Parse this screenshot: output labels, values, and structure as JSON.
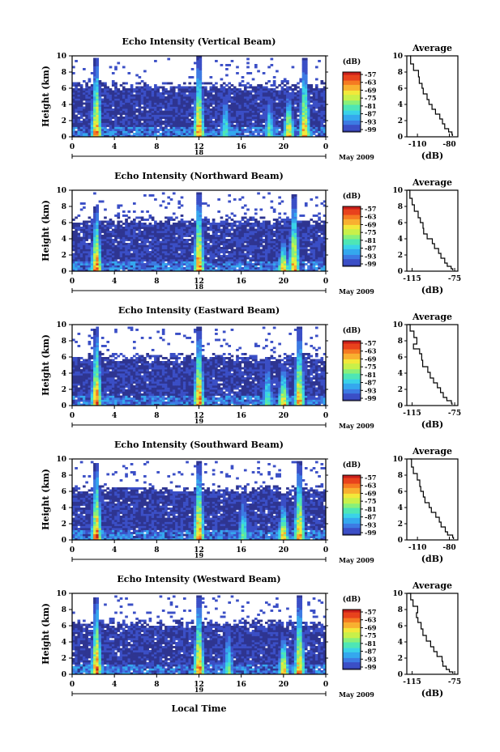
{
  "colors": {
    "background_echo": "#2e3591",
    "colormap": [
      "#2e3591",
      "#3b4fc6",
      "#3d7be3",
      "#35a8ee",
      "#3ad2e8",
      "#4ee6b5",
      "#88f07a",
      "#c8f04a",
      "#f2e83a",
      "#f8b030",
      "#f57a22",
      "#e8421c",
      "#c81e1a"
    ]
  },
  "x_axis_label": "Local Time",
  "colorbar": {
    "unit": "(dB)",
    "tick_labels": [
      "-57",
      "-63",
      "-69",
      "-75",
      "-81",
      "-87",
      "-93",
      "-99"
    ]
  },
  "chart_data": [
    {
      "type": "heatmap",
      "title": "Echo Intensity (Vertical Beam)",
      "ylabel": "Height (km)",
      "y_ticks": [
        "0",
        "2",
        "4",
        "6",
        "8",
        "10"
      ],
      "x_ticks": [
        "0",
        "4",
        "8",
        "12",
        "16",
        "20",
        "0"
      ],
      "date_label": "18",
      "month_label": "May 2009",
      "ylim": [
        0,
        10
      ],
      "xlim": [
        0,
        24
      ],
      "color_range_db": [
        -99,
        -57
      ],
      "clutter_top_km": 6.3,
      "convective_events": [
        {
          "center_hour": 2.3,
          "top_km": 9.8,
          "peak_db": -57
        },
        {
          "center_hour": 12.0,
          "top_km": 9.9,
          "peak_db": -57
        },
        {
          "center_hour": 14.5,
          "top_km": 5.5,
          "peak_db": -75
        },
        {
          "center_hour": 18.7,
          "top_km": 5.0,
          "peak_db": -75
        },
        {
          "center_hour": 20.5,
          "top_km": 5.5,
          "peak_db": -60
        },
        {
          "center_hour": 22.0,
          "top_km": 9.8,
          "peak_db": -60
        }
      ]
    },
    {
      "type": "line",
      "title": "Average",
      "xlabel": "(dB)",
      "x_ticks": [
        "-110",
        "-80"
      ],
      "xlim": [
        -120,
        -72
      ],
      "ylim": [
        0,
        10
      ],
      "y_ticks": [
        "0",
        "2",
        "4",
        "6",
        "8",
        "10"
      ],
      "x": [
        -117,
        -116,
        -113,
        -110,
        -108,
        -106,
        -104,
        -102,
        -99,
        -96,
        -93,
        -90,
        -87,
        -84,
        -81,
        -78,
        -76
      ],
      "y": [
        10.0,
        9.0,
        8.2,
        7.4,
        6.6,
        6.0,
        5.3,
        4.6,
        4.0,
        3.4,
        2.8,
        2.2,
        1.6,
        1.0,
        0.6,
        0.3,
        0.1
      ]
    },
    {
      "type": "heatmap",
      "title": "Echo Intensity (Northward Beam)",
      "ylabel": "Height (km)",
      "y_ticks": [
        "0",
        "2",
        "4",
        "6",
        "8",
        "10"
      ],
      "x_ticks": [
        "0",
        "4",
        "8",
        "12",
        "16",
        "20",
        "0"
      ],
      "date_label": "18",
      "month_label": "May 2009",
      "ylim": [
        0,
        10
      ],
      "xlim": [
        0,
        24
      ],
      "color_range_db": [
        -99,
        -57
      ],
      "clutter_top_km": 6.3,
      "convective_events": [
        {
          "center_hour": 2.3,
          "top_km": 8.0,
          "peak_db": -57
        },
        {
          "center_hour": 12.0,
          "top_km": 9.8,
          "peak_db": -57
        },
        {
          "center_hour": 20.0,
          "top_km": 4.0,
          "peak_db": -60
        },
        {
          "center_hour": 21.0,
          "top_km": 9.5,
          "peak_db": -60
        }
      ]
    },
    {
      "type": "line",
      "title": "Average",
      "xlabel": "(dB)",
      "x_ticks": [
        "-115",
        "-75"
      ],
      "xlim": [
        -120,
        -72
      ],
      "ylim": [
        0,
        10
      ],
      "y_ticks": [
        "0",
        "2",
        "4",
        "6",
        "8",
        "10"
      ],
      "x": [
        -119,
        -117,
        -115,
        -112,
        -110,
        -108,
        -105,
        -103,
        -100,
        -97,
        -94,
        -91,
        -88,
        -85,
        -82,
        -79,
        -76
      ],
      "y": [
        10.0,
        9.0,
        8.2,
        7.4,
        6.6,
        6.0,
        5.3,
        4.6,
        4.0,
        3.4,
        2.8,
        2.2,
        1.6,
        1.0,
        0.6,
        0.3,
        0.1
      ]
    },
    {
      "type": "heatmap",
      "title": "Echo Intensity (Eastward Beam)",
      "ylabel": "Height (km)",
      "y_ticks": [
        "0",
        "2",
        "4",
        "6",
        "8",
        "10"
      ],
      "x_ticks": [
        "0",
        "4",
        "8",
        "12",
        "16",
        "20",
        "0"
      ],
      "date_label": "19",
      "month_label": "May 2009",
      "ylim": [
        0,
        10
      ],
      "xlim": [
        0,
        24
      ],
      "color_range_db": [
        -99,
        -57
      ],
      "clutter_top_km": 6.0,
      "convective_events": [
        {
          "center_hour": 2.3,
          "top_km": 9.5,
          "peak_db": -57
        },
        {
          "center_hour": 12.0,
          "top_km": 9.8,
          "peak_db": -57
        },
        {
          "center_hour": 18.5,
          "top_km": 6.0,
          "peak_db": -75
        },
        {
          "center_hour": 20.0,
          "top_km": 5.0,
          "peak_db": -60
        },
        {
          "center_hour": 21.5,
          "top_km": 9.8,
          "peak_db": -60
        }
      ]
    },
    {
      "type": "line",
      "title": "Average",
      "xlabel": "(dB)",
      "x_ticks": [
        "-115",
        "-75"
      ],
      "xlim": [
        -120,
        -72
      ],
      "ylim": [
        0,
        10
      ],
      "y_ticks": [
        "0",
        "2",
        "4",
        "6",
        "8",
        "10"
      ],
      "x": [
        -119,
        -117,
        -114,
        -110,
        -113,
        -109,
        -107,
        -104,
        -101,
        -98,
        -95,
        -92,
        -88,
        -85,
        -82,
        -79,
        -77
      ],
      "y": [
        10.0,
        9.2,
        8.4,
        7.6,
        7.0,
        6.4,
        5.6,
        4.8,
        4.1,
        3.4,
        2.8,
        2.2,
        1.6,
        1.0,
        0.6,
        0.3,
        0.1
      ]
    },
    {
      "type": "heatmap",
      "title": "Echo Intensity (Southward Beam)",
      "ylabel": "Height (km)",
      "y_ticks": [
        "0",
        "2",
        "4",
        "6",
        "8",
        "10"
      ],
      "x_ticks": [
        "0",
        "4",
        "8",
        "12",
        "16",
        "20",
        "0"
      ],
      "date_label": "19",
      "month_label": "May 2009",
      "ylim": [
        0,
        10
      ],
      "xlim": [
        0,
        24
      ],
      "color_range_db": [
        -99,
        -57
      ],
      "clutter_top_km": 6.3,
      "convective_events": [
        {
          "center_hour": 2.3,
          "top_km": 9.5,
          "peak_db": -57
        },
        {
          "center_hour": 12.0,
          "top_km": 9.8,
          "peak_db": -57
        },
        {
          "center_hour": 16.2,
          "top_km": 6.0,
          "peak_db": -75
        },
        {
          "center_hour": 20.0,
          "top_km": 5.0,
          "peak_db": -60
        },
        {
          "center_hour": 21.5,
          "top_km": 9.8,
          "peak_db": -60
        }
      ]
    },
    {
      "type": "line",
      "title": "Average",
      "xlabel": "(dB)",
      "x_ticks": [
        "-110",
        "-80"
      ],
      "xlim": [
        -120,
        -72
      ],
      "ylim": [
        0,
        10
      ],
      "y_ticks": [
        "0",
        "2",
        "4",
        "6",
        "8",
        "10"
      ],
      "x": [
        -117,
        -116,
        -113,
        -110,
        -108,
        -106,
        -104,
        -102,
        -99,
        -96,
        -93,
        -90,
        -87,
        -84,
        -81,
        -78,
        -76
      ],
      "y": [
        10.0,
        9.0,
        8.2,
        7.4,
        6.6,
        6.0,
        5.3,
        4.6,
        4.0,
        3.4,
        2.8,
        2.2,
        1.6,
        1.0,
        0.6,
        0.3,
        0.1
      ]
    },
    {
      "type": "heatmap",
      "title": "Echo Intensity (Westward Beam)",
      "ylabel": "Height (km)",
      "y_ticks": [
        "0",
        "2",
        "4",
        "6",
        "8",
        "10"
      ],
      "x_ticks": [
        "0",
        "4",
        "8",
        "12",
        "16",
        "20",
        "0"
      ],
      "date_label": "19",
      "month_label": "May 2009",
      "ylim": [
        0,
        10
      ],
      "xlim": [
        0,
        24
      ],
      "color_range_db": [
        -99,
        -57
      ],
      "clutter_top_km": 6.3,
      "convective_events": [
        {
          "center_hour": 2.3,
          "top_km": 9.5,
          "peak_db": -57
        },
        {
          "center_hour": 12.0,
          "top_km": 9.8,
          "peak_db": -57
        },
        {
          "center_hour": 14.8,
          "top_km": 6.0,
          "peak_db": -75
        },
        {
          "center_hour": 20.0,
          "top_km": 5.0,
          "peak_db": -60
        },
        {
          "center_hour": 21.5,
          "top_km": 9.8,
          "peak_db": -60
        }
      ]
    },
    {
      "type": "line",
      "title": "Average",
      "xlabel": "(dB)",
      "x_ticks": [
        "-115",
        "-75"
      ],
      "xlim": [
        -120,
        -72
      ],
      "ylim": [
        0,
        10
      ],
      "y_ticks": [
        "0",
        "2",
        "4",
        "6",
        "8",
        "10"
      ],
      "x": [
        -119,
        -117,
        -114,
        -110,
        -112,
        -109,
        -107,
        -104,
        -101,
        -98,
        -95,
        -92,
        -88,
        -85,
        -82,
        -79,
        -77
      ],
      "y": [
        10.0,
        9.2,
        8.4,
        7.6,
        7.0,
        6.4,
        5.6,
        4.8,
        4.1,
        3.4,
        2.8,
        2.2,
        1.6,
        1.0,
        0.6,
        0.3,
        0.1
      ]
    }
  ]
}
